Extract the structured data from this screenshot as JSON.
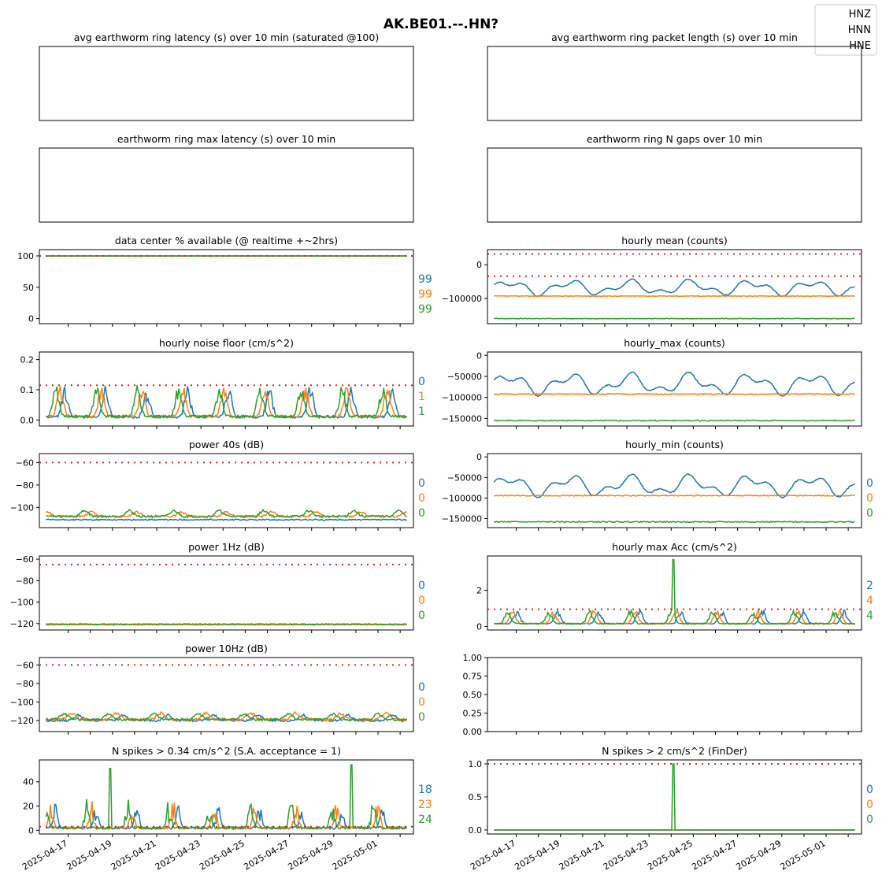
{
  "figure": {
    "title": "AK.BE01.--.HN?",
    "legend": {
      "placement": "top-right",
      "entries": [
        "HNZ",
        "HNN",
        "HNE"
      ]
    },
    "colors": {
      "HNZ": "#1f77b4",
      "HNN": "#ff7f0e",
      "HNE": "#2ca02c",
      "threshold": "#d62728"
    },
    "x_tick_labels": [
      "2025-04-17",
      "2025-04-19",
      "2025-04-21",
      "2025-04-23",
      "2025-04-25",
      "2025-04-27",
      "2025-04-29",
      "2025-05-01"
    ]
  },
  "chart_data": [
    {
      "id": "p0",
      "type": "line",
      "title": "avg earthworm ring latency (s)   over 10 min (saturated @100)",
      "empty": true,
      "series": []
    },
    {
      "id": "p1",
      "type": "line",
      "title": "avg earthworm ring packet length (s)   over 10 min",
      "empty": true,
      "series": []
    },
    {
      "id": "p2",
      "type": "line",
      "title": "earthworm ring max latency (s)   over 10 min",
      "empty": true,
      "series": []
    },
    {
      "id": "p3",
      "type": "line",
      "title": "earthworm ring N gaps   over 10 min",
      "empty": true,
      "series": []
    },
    {
      "id": "p4",
      "type": "line",
      "title": "data center % available (@ realtime +~2hrs)",
      "ylim": [
        -8,
        110
      ],
      "yticks": [
        0,
        50,
        100
      ],
      "ytick_labels": [
        "0",
        "50",
        "100"
      ],
      "thresholds": [
        100
      ],
      "side_labels": [
        "99",
        "99",
        "99"
      ],
      "series": [
        {
          "pattern": "flat",
          "base": 100
        },
        {
          "pattern": "flat",
          "base": 100
        },
        {
          "pattern": "flat",
          "base": 100
        }
      ]
    },
    {
      "id": "p5",
      "type": "line",
      "title": "hourly mean (counts)",
      "ylim": [
        -175000,
        45000
      ],
      "yticks": [
        0,
        -100000
      ],
      "ytick_labels": [
        "0",
        "−100000"
      ],
      "thresholds": [
        32000,
        -34000
      ],
      "side_labels": [],
      "series": [
        {
          "pattern": "wavy",
          "base": -68000,
          "amp": 16000
        },
        {
          "pattern": "flat",
          "base": -93000,
          "amp": 1500
        },
        {
          "pattern": "flat",
          "base": -160000,
          "amp": 1500
        }
      ]
    },
    {
      "id": "p6",
      "type": "line",
      "title": "hourly noise floor (cm/s^2)",
      "ylim": [
        -0.02,
        0.225
      ],
      "yticks": [
        0,
        0.1,
        0.2
      ],
      "ytick_labels": [
        "0.0",
        "0.1",
        "0.2"
      ],
      "thresholds": [
        0.115
      ],
      "side_labels": [
        "0",
        "1",
        "1"
      ],
      "series": [
        {
          "pattern": "bursty",
          "base": 0.01,
          "amp": 0.08
        },
        {
          "pattern": "bursty",
          "base": 0.012,
          "amp": 0.08
        },
        {
          "pattern": "bursty",
          "base": 0.012,
          "amp": 0.08
        }
      ]
    },
    {
      "id": "p7",
      "type": "line",
      "title": "hourly_max (counts)",
      "ylim": [
        -168000,
        8000
      ],
      "yticks": [
        0,
        -50000,
        -100000,
        -150000
      ],
      "ytick_labels": [
        "0",
        "−50000",
        "−100000",
        "−150000"
      ],
      "thresholds": [],
      "side_labels": [],
      "series": [
        {
          "pattern": "wavy",
          "base": -68000,
          "amp": 18000
        },
        {
          "pattern": "flat",
          "base": -92000,
          "amp": 2500
        },
        {
          "pattern": "flat",
          "base": -155000,
          "amp": 2500
        }
      ]
    },
    {
      "id": "p8",
      "type": "line",
      "title": "power 40s (dB)",
      "ylim": [
        -118,
        -52
      ],
      "yticks": [
        -60,
        -80,
        -100
      ],
      "ytick_labels": [
        "−60",
        "−80",
        "−100"
      ],
      "thresholds": [
        -60
      ],
      "side_labels": [
        "0",
        "0",
        "0"
      ],
      "series": [
        {
          "pattern": "flat",
          "base": -111,
          "amp": 1
        },
        {
          "pattern": "bumpy",
          "base": -108,
          "amp": 4
        },
        {
          "pattern": "bumpy",
          "base": -108,
          "amp": 5
        }
      ]
    },
    {
      "id": "p9",
      "type": "line",
      "title": "hourly_min (counts)",
      "ylim": [
        -172000,
        8000
      ],
      "yticks": [
        0,
        -50000,
        -100000,
        -150000
      ],
      "ytick_labels": [
        "0",
        "−50000",
        "−100000",
        "−150000"
      ],
      "thresholds": [],
      "side_labels": [
        "0",
        "0",
        "0"
      ],
      "series": [
        {
          "pattern": "wavy",
          "base": -70000,
          "amp": 18000
        },
        {
          "pattern": "flat",
          "base": -94000,
          "amp": 2500
        },
        {
          "pattern": "flat",
          "base": -158000,
          "amp": 2500
        }
      ]
    },
    {
      "id": "p10",
      "type": "line",
      "title": "power 1Hz (dB)",
      "ylim": [
        -126,
        -57
      ],
      "yticks": [
        -60,
        -80,
        -100,
        -120
      ],
      "ytick_labels": [
        "−60",
        "−80",
        "−100",
        "−120"
      ],
      "thresholds": [
        -65
      ],
      "side_labels": [
        "0",
        "0",
        "0"
      ],
      "series": [
        {
          "pattern": "flat",
          "base": -121,
          "amp": 0.5
        },
        {
          "pattern": "flat",
          "base": -121,
          "amp": 0.8
        },
        {
          "pattern": "flat",
          "base": -120.5,
          "amp": 0.8
        }
      ]
    },
    {
      "id": "p11",
      "type": "line",
      "title": "hourly max Acc (cm/s^2)",
      "ylim": [
        -0.2,
        3.9
      ],
      "yticks": [
        0,
        2
      ],
      "ytick_labels": [
        "0",
        "2"
      ],
      "thresholds": [
        0.95
      ],
      "side_labels": [
        "2",
        "4",
        "4"
      ],
      "series": [
        {
          "pattern": "bursty",
          "base": 0.15,
          "amp": 0.6
        },
        {
          "pattern": "bursty",
          "base": 0.15,
          "amp": 0.6
        },
        {
          "pattern": "bursty",
          "base": 0.15,
          "amp": 0.6,
          "spike_at": 8.1,
          "spike": 3.7
        }
      ]
    },
    {
      "id": "p12",
      "type": "line",
      "title": "power 10Hz (dB)",
      "ylim": [
        -132,
        -52
      ],
      "yticks": [
        -60,
        -80,
        -100,
        -120
      ],
      "ytick_labels": [
        "−60",
        "−80",
        "−100",
        "−120"
      ],
      "thresholds": [
        -60
      ],
      "side_labels": [
        "0",
        "0",
        "0"
      ],
      "series": [
        {
          "pattern": "bumpy",
          "base": -120,
          "amp": 6
        },
        {
          "pattern": "bumpy",
          "base": -119,
          "amp": 7
        },
        {
          "pattern": "bumpy",
          "base": -119,
          "amp": 6
        }
      ]
    },
    {
      "id": "p13",
      "type": "line",
      "title": "",
      "ylim": [
        0,
        1
      ],
      "yticks": [
        0,
        0.25,
        0.5,
        0.75,
        1
      ],
      "ytick_labels": [
        "0.00",
        "0.25",
        "0.50",
        "0.75",
        "1.00"
      ],
      "thresholds": [],
      "side_labels": [],
      "series": []
    },
    {
      "id": "p14",
      "type": "line",
      "title": "N spikes > 0.34 cm/s^2 (S.A. acceptance = 1)",
      "ylim": [
        -3,
        58
      ],
      "yticks": [
        0,
        20,
        40
      ],
      "ytick_labels": [
        "0",
        "20",
        "40"
      ],
      "thresholds": [
        3
      ],
      "side_labels": [
        "18",
        "23",
        "24"
      ],
      "series": [
        {
          "pattern": "spiky",
          "base": 1,
          "amp": 10
        },
        {
          "pattern": "spiky",
          "base": 1,
          "amp": 12
        },
        {
          "pattern": "spiky",
          "base": 1,
          "amp": 12,
          "spike_at": 2.9,
          "spike": 51,
          "spike2_at": 13.8,
          "spike2": 54
        }
      ]
    },
    {
      "id": "p15",
      "type": "line",
      "title": "N spikes > 2 cm/s^2 (FinDer)",
      "ylim": [
        -0.06,
        1.06
      ],
      "yticks": [
        0,
        0.5,
        1
      ],
      "ytick_labels": [
        "0.0",
        "0.5",
        "1.0"
      ],
      "thresholds": [
        1
      ],
      "side_labels": [
        "0",
        "0",
        "0"
      ],
      "series": [
        {
          "pattern": "flat",
          "base": 0
        },
        {
          "pattern": "flat",
          "base": 0
        },
        {
          "pattern": "flat",
          "base": 0,
          "spike_at": 8.1,
          "spike": 1
        }
      ]
    }
  ]
}
